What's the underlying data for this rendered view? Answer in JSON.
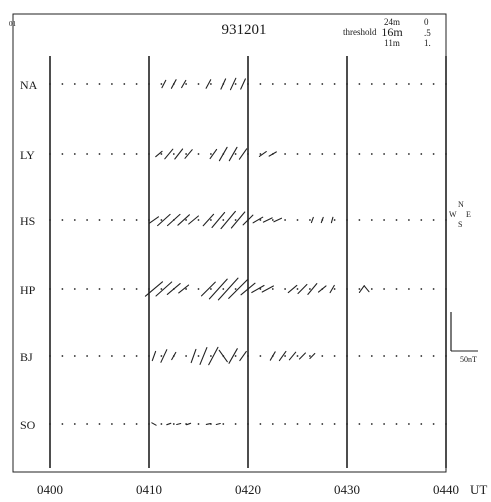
{
  "chart_data": {
    "type": "vector-stackplot",
    "corner_label": "01",
    "title": "931201",
    "threshold": {
      "label": "threshold",
      "rows": [
        {
          "level": "24m",
          "value": "0"
        },
        {
          "level": "16m",
          "value": ".5"
        },
        {
          "level": "11m",
          "value": "1."
        }
      ]
    },
    "stations": [
      "NA",
      "LY",
      "HS",
      "HP",
      "BJ",
      "SO"
    ],
    "x_ticks": [
      "0400",
      "0410",
      "0420",
      "0430",
      "0440"
    ],
    "x_unit": "UT",
    "x_range": [
      0,
      40
    ],
    "compass": {
      "n": "N",
      "s": "S",
      "e": "E",
      "w": "W"
    },
    "scale_label": "50nT",
    "vectors": [
      {
        "station": "NA",
        "t": 11.5,
        "angle": 62,
        "len": 0.6
      },
      {
        "station": "NA",
        "t": 12.5,
        "angle": 62,
        "len": 0.7
      },
      {
        "station": "NA",
        "t": 13.5,
        "angle": 60,
        "len": 0.6
      },
      {
        "station": "NA",
        "t": 16.0,
        "angle": 62,
        "len": 0.7
      },
      {
        "station": "NA",
        "t": 17.5,
        "angle": 65,
        "len": 0.8
      },
      {
        "station": "NA",
        "t": 18.5,
        "angle": 65,
        "len": 0.9
      },
      {
        "station": "NA",
        "t": 19.5,
        "angle": 65,
        "len": 0.8
      },
      {
        "station": "LY",
        "t": 11.0,
        "angle": 40,
        "len": 0.6
      },
      {
        "station": "LY",
        "t": 12.0,
        "angle": 50,
        "len": 0.9
      },
      {
        "station": "LY",
        "t": 13.0,
        "angle": 52,
        "len": 0.9
      },
      {
        "station": "LY",
        "t": 14.0,
        "angle": 50,
        "len": 0.8
      },
      {
        "station": "LY",
        "t": 16.5,
        "angle": 55,
        "len": 0.8
      },
      {
        "station": "LY",
        "t": 17.5,
        "angle": 60,
        "len": 1.1
      },
      {
        "station": "LY",
        "t": 18.5,
        "angle": 60,
        "len": 1.1
      },
      {
        "station": "LY",
        "t": 19.5,
        "angle": 55,
        "len": 0.9
      },
      {
        "station": "LY",
        "t": 21.5,
        "angle": 35,
        "len": 0.6
      },
      {
        "station": "LY",
        "t": 22.5,
        "angle": 30,
        "len": 0.6
      },
      {
        "station": "HS",
        "t": 10.5,
        "angle": 35,
        "len": 0.8
      },
      {
        "station": "HS",
        "t": 11.5,
        "angle": 42,
        "len": 1.2
      },
      {
        "station": "HS",
        "t": 12.5,
        "angle": 42,
        "len": 1.2
      },
      {
        "station": "HS",
        "t": 13.5,
        "angle": 42,
        "len": 1.1
      },
      {
        "station": "HS",
        "t": 14.5,
        "angle": 40,
        "len": 0.9
      },
      {
        "station": "HS",
        "t": 16.0,
        "angle": 48,
        "len": 1.1
      },
      {
        "station": "HS",
        "t": 17.0,
        "angle": 50,
        "len": 1.4
      },
      {
        "station": "HS",
        "t": 18.0,
        "angle": 50,
        "len": 1.6
      },
      {
        "station": "HS",
        "t": 19.0,
        "angle": 50,
        "len": 1.5
      },
      {
        "station": "HS",
        "t": 20.0,
        "angle": 45,
        "len": 1.0
      },
      {
        "station": "HS",
        "t": 21.0,
        "angle": 30,
        "len": 0.8
      },
      {
        "station": "HS",
        "t": 22.0,
        "angle": 25,
        "len": 0.7
      },
      {
        "station": "HS",
        "t": 23.0,
        "angle": 25,
        "len": 0.6
      },
      {
        "station": "HS",
        "t": 26.5,
        "angle": 70,
        "len": 0.4
      },
      {
        "station": "HS",
        "t": 27.5,
        "angle": 70,
        "len": 0.4
      },
      {
        "station": "HS",
        "t": 28.5,
        "angle": 75,
        "len": 0.4
      },
      {
        "station": "HP",
        "t": 10.5,
        "angle": 40,
        "len": 1.6
      },
      {
        "station": "HP",
        "t": 11.5,
        "angle": 42,
        "len": 1.5
      },
      {
        "station": "HP",
        "t": 12.5,
        "angle": 40,
        "len": 1.2
      },
      {
        "station": "HP",
        "t": 13.5,
        "angle": 38,
        "len": 0.9
      },
      {
        "station": "HP",
        "t": 16.0,
        "angle": 45,
        "len": 1.4
      },
      {
        "station": "HP",
        "t": 17.0,
        "angle": 48,
        "len": 1.9
      },
      {
        "station": "HP",
        "t": 18.0,
        "angle": 48,
        "len": 2.1
      },
      {
        "station": "HP",
        "t": 19.0,
        "angle": 45,
        "len": 1.9
      },
      {
        "station": "HP",
        "t": 20.0,
        "angle": 40,
        "len": 1.3
      },
      {
        "station": "HP",
        "t": 21.0,
        "angle": 30,
        "len": 1.0
      },
      {
        "station": "HP",
        "t": 22.0,
        "angle": 28,
        "len": 0.9
      },
      {
        "station": "HP",
        "t": 24.5,
        "angle": 40,
        "len": 0.8
      },
      {
        "station": "HP",
        "t": 25.5,
        "angle": 45,
        "len": 0.9
      },
      {
        "station": "HP",
        "t": 26.5,
        "angle": 50,
        "len": 1.0
      },
      {
        "station": "HP",
        "t": 27.5,
        "angle": 40,
        "len": 0.7
      },
      {
        "station": "HP",
        "t": 28.5,
        "angle": 60,
        "len": 0.6
      },
      {
        "station": "HP",
        "t": 31.5,
        "angle": 55,
        "len": 0.6
      },
      {
        "station": "HP",
        "t": 32.0,
        "angle": -50,
        "len": 0.5
      },
      {
        "station": "BJ",
        "t": 10.5,
        "angle": 70,
        "len": 0.7
      },
      {
        "station": "BJ",
        "t": 11.5,
        "angle": 65,
        "len": 1.0
      },
      {
        "station": "BJ",
        "t": 12.5,
        "angle": 60,
        "len": 0.6
      },
      {
        "station": "BJ",
        "t": 14.5,
        "angle": 70,
        "len": 1.0
      },
      {
        "station": "BJ",
        "t": 15.5,
        "angle": 68,
        "len": 1.3
      },
      {
        "station": "BJ",
        "t": 16.5,
        "angle": 62,
        "len": 1.4
      },
      {
        "station": "BJ",
        "t": 17.5,
        "angle": -55,
        "len": 1.0
      },
      {
        "station": "BJ",
        "t": 18.5,
        "angle": 60,
        "len": 1.2
      },
      {
        "station": "BJ",
        "t": 19.5,
        "angle": 55,
        "len": 0.8
      },
      {
        "station": "BJ",
        "t": 22.5,
        "angle": 60,
        "len": 0.7
      },
      {
        "station": "BJ",
        "t": 23.5,
        "angle": 55,
        "len": 0.8
      },
      {
        "station": "BJ",
        "t": 24.5,
        "angle": 50,
        "len": 0.7
      },
      {
        "station": "BJ",
        "t": 25.5,
        "angle": 45,
        "len": 0.6
      },
      {
        "station": "BJ",
        "t": 26.5,
        "angle": 45,
        "len": 0.5
      },
      {
        "station": "SO",
        "t": 10.5,
        "angle": -30,
        "len": 0.35
      },
      {
        "station": "SO",
        "t": 12.0,
        "angle": 20,
        "len": 0.3
      },
      {
        "station": "SO",
        "t": 13.0,
        "angle": 15,
        "len": 0.3
      },
      {
        "station": "SO",
        "t": 14.0,
        "angle": 20,
        "len": 0.3
      },
      {
        "station": "SO",
        "t": 16.0,
        "angle": 10,
        "len": 0.3
      },
      {
        "station": "SO",
        "t": 17.0,
        "angle": 15,
        "len": 0.3
      }
    ]
  }
}
